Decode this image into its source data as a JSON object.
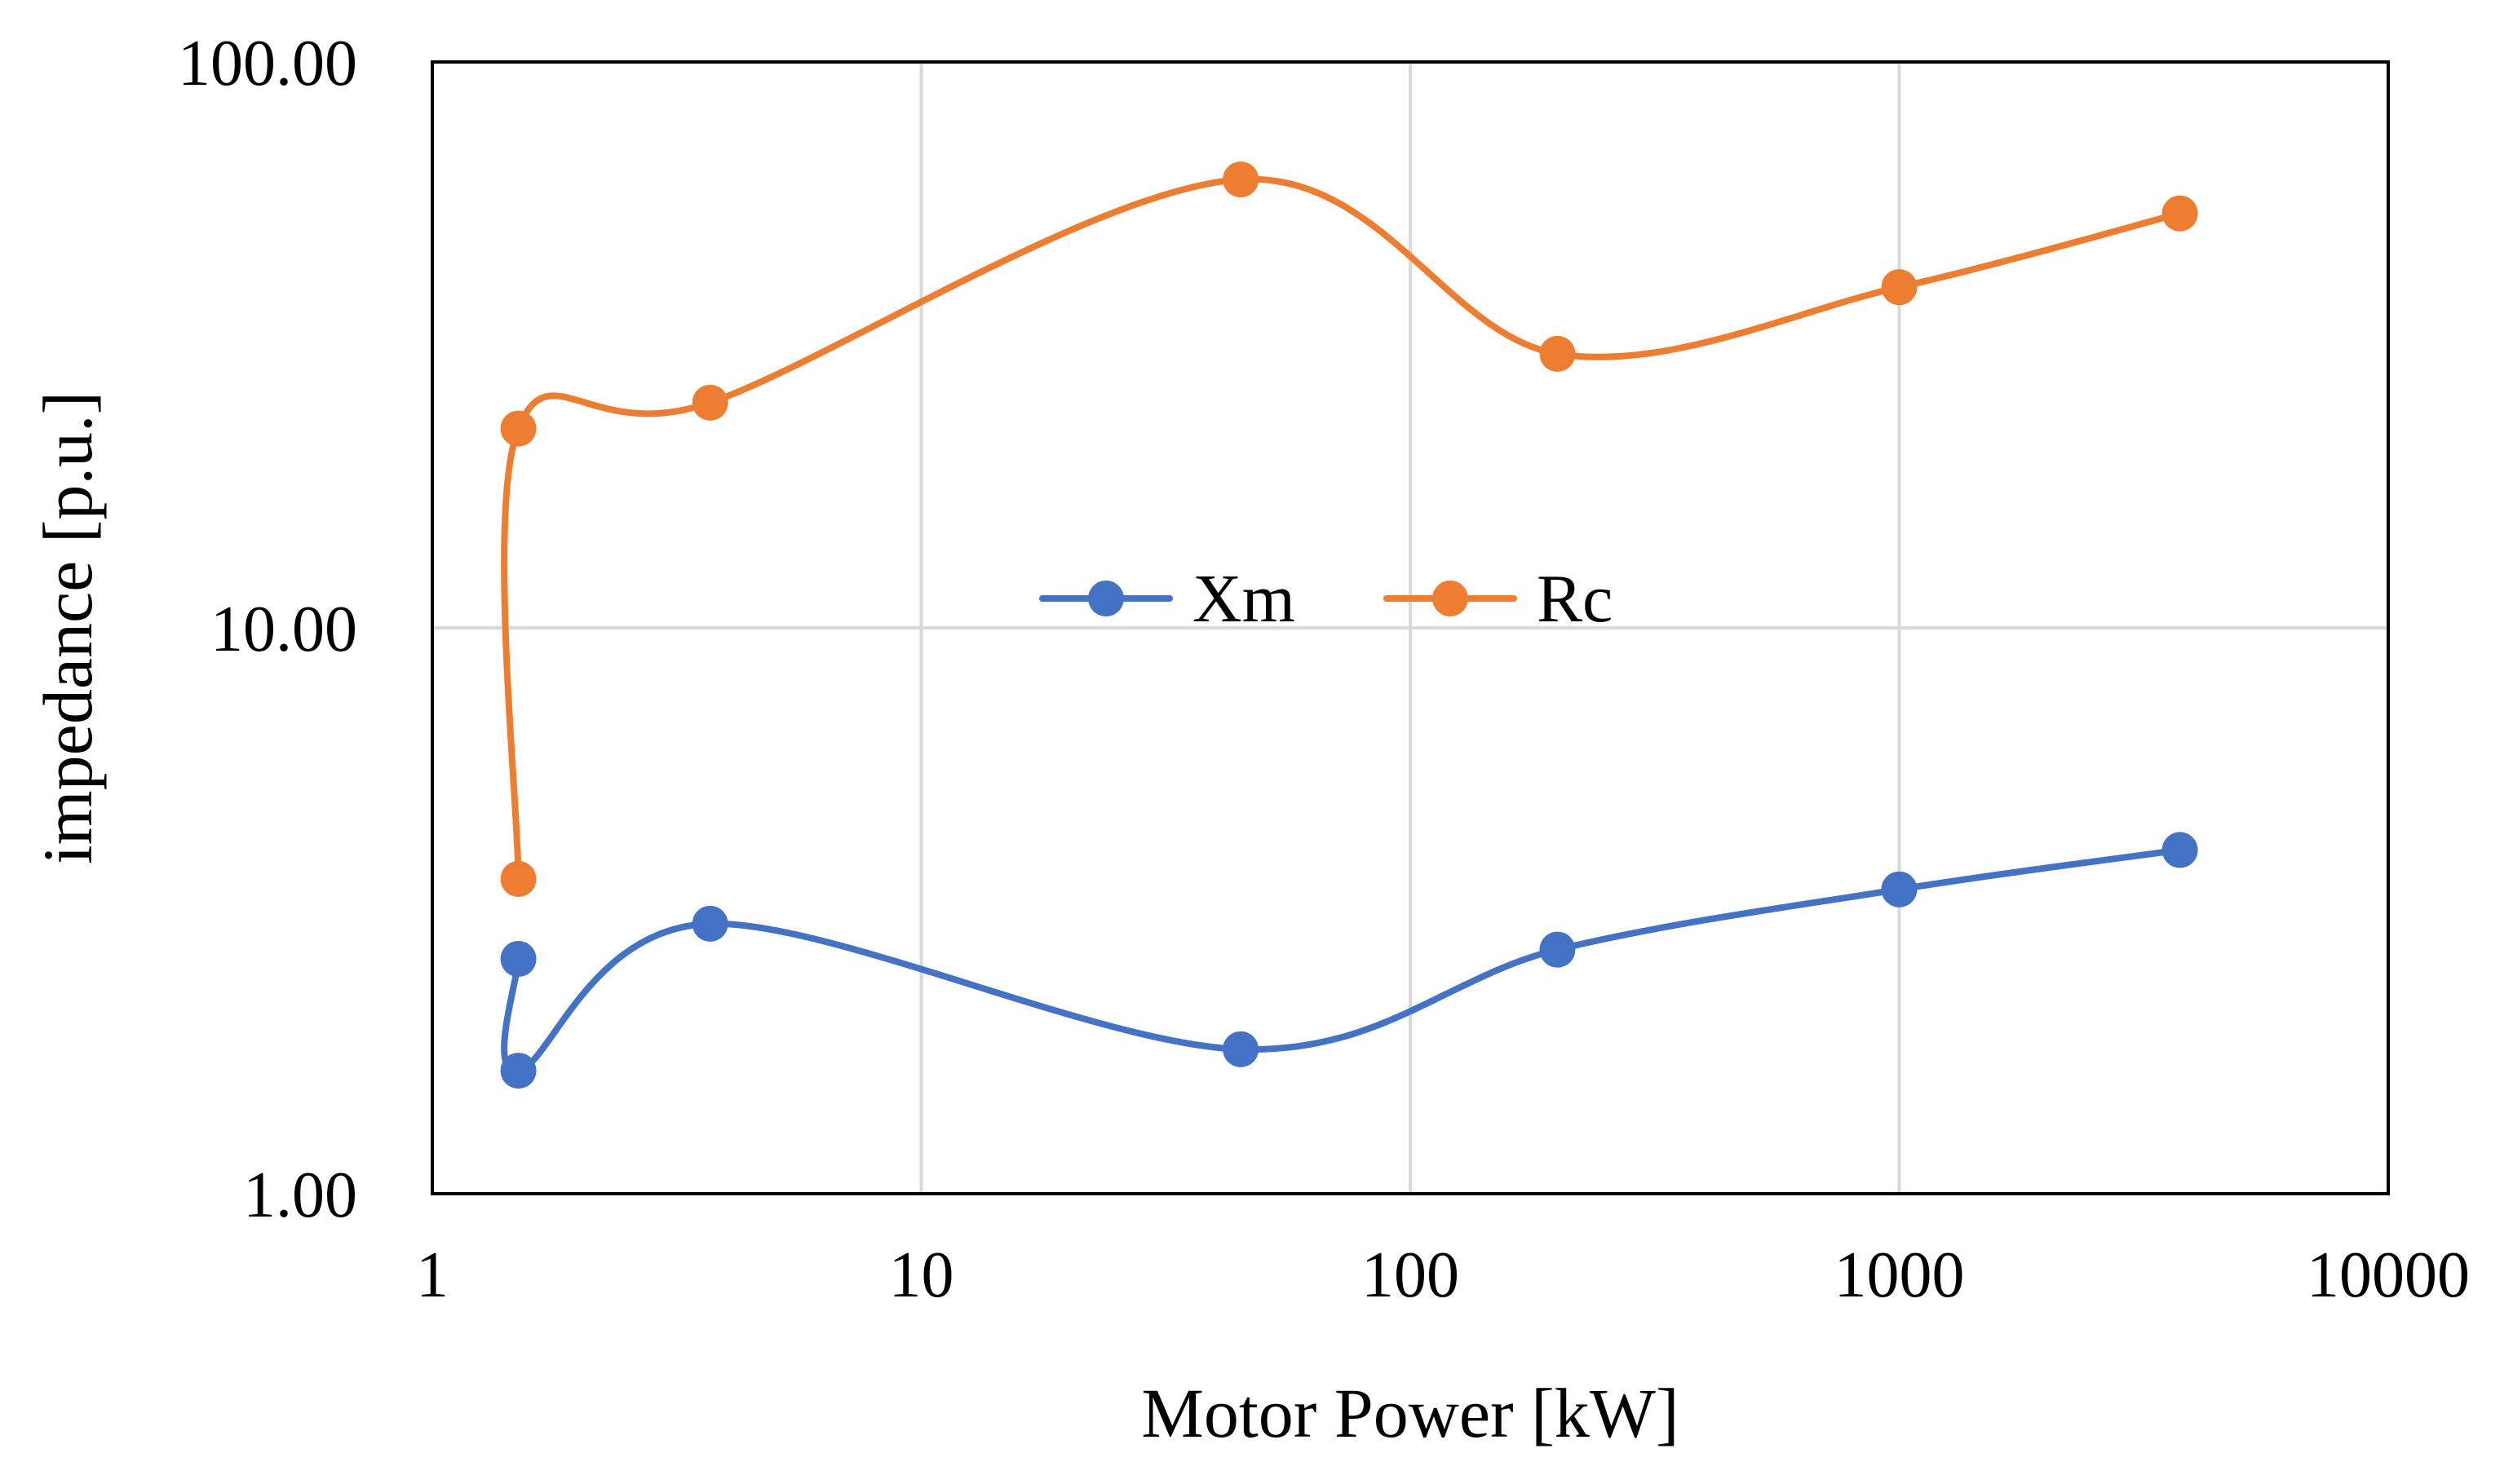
{
  "chart_data": {
    "type": "line",
    "title": "",
    "xlabel": "Motor Power [kW]",
    "ylabel": "impedance [p.u.]",
    "xscale": "log",
    "yscale": "log",
    "xlim": [
      1,
      10000
    ],
    "ylim": [
      1,
      100
    ],
    "x_tick_labels": [
      "1",
      "10",
      "100",
      "1000",
      "10000"
    ],
    "y_tick_labels": [
      "1.00",
      "10.00",
      "100.00"
    ],
    "grid": true,
    "smooth": true,
    "legend_position": "center",
    "series": [
      {
        "name": "Xm",
        "color": "#4472C4",
        "points": [
          {
            "x": 1.5,
            "y": 2.6
          },
          {
            "x": 1.5,
            "y": 1.65
          },
          {
            "x": 3.7,
            "y": 3.0
          },
          {
            "x": 45,
            "y": 1.8
          },
          {
            "x": 200,
            "y": 2.7
          },
          {
            "x": 1000,
            "y": 3.45
          },
          {
            "x": 3750,
            "y": 4.05
          }
        ]
      },
      {
        "name": "Rc",
        "color": "#ED7D31",
        "points": [
          {
            "x": 1.5,
            "y": 3.6
          },
          {
            "x": 1.5,
            "y": 22.5
          },
          {
            "x": 3.7,
            "y": 25
          },
          {
            "x": 45,
            "y": 62
          },
          {
            "x": 200,
            "y": 30.5
          },
          {
            "x": 1000,
            "y": 40
          },
          {
            "x": 3750,
            "y": 54
          }
        ]
      }
    ]
  }
}
